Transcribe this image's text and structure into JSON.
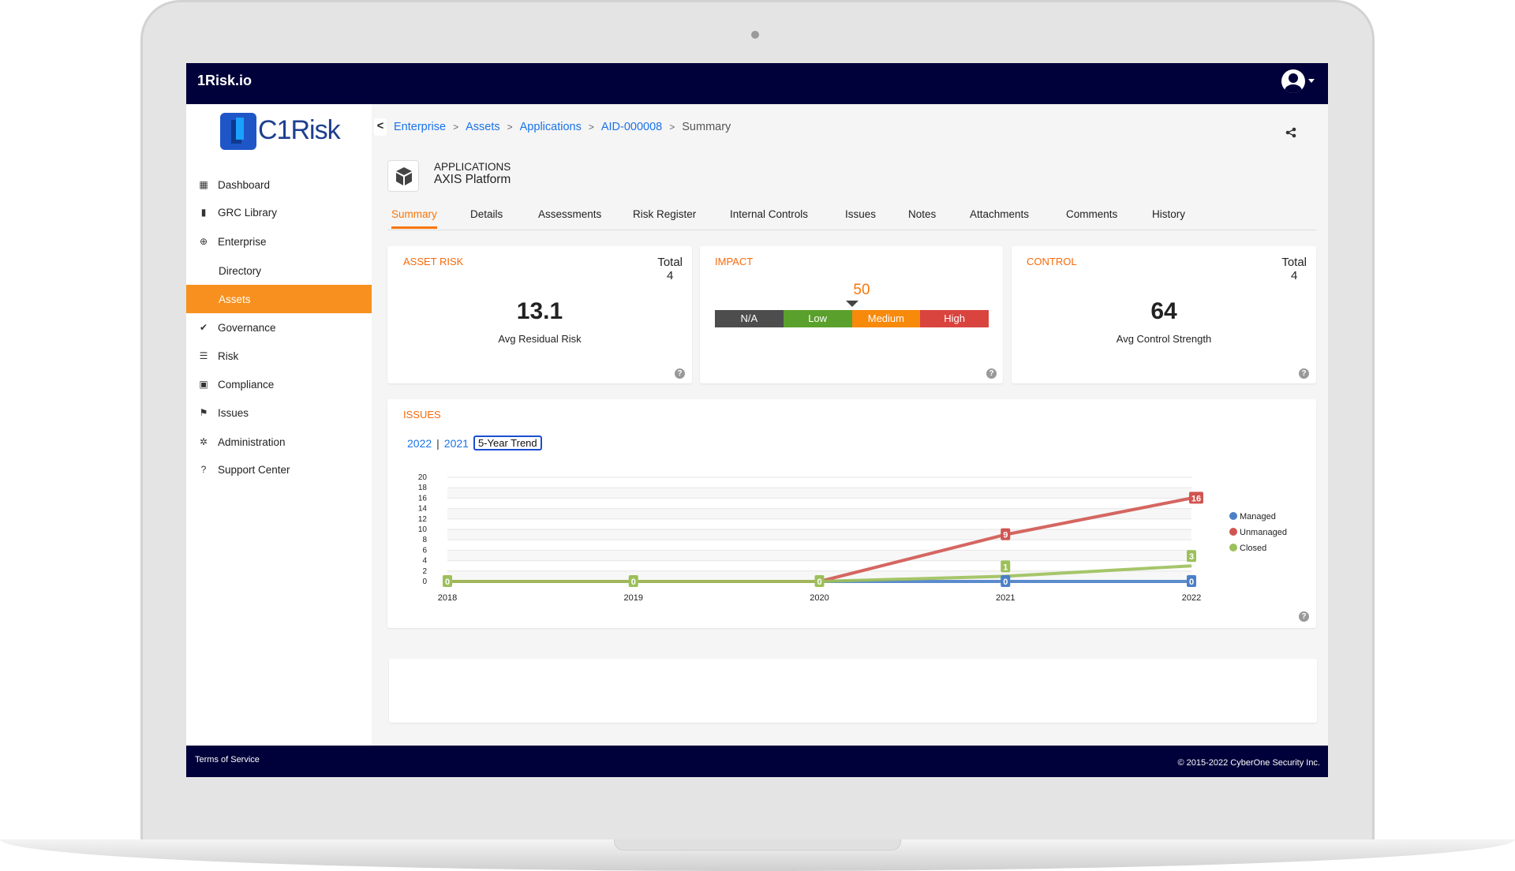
{
  "app": {
    "title": "1Risk.io",
    "logo_text": "C1Risk"
  },
  "sidebar": {
    "items": [
      {
        "label": "Dashboard",
        "icon": "grid-icon"
      },
      {
        "label": "GRC Library",
        "icon": "book-icon"
      },
      {
        "label": "Enterprise",
        "icon": "globe-icon"
      },
      {
        "label": "Directory",
        "icon": ""
      },
      {
        "label": "Assets",
        "icon": "",
        "active": true
      },
      {
        "label": "Governance",
        "icon": "check-icon"
      },
      {
        "label": "Risk",
        "icon": "list-icon"
      },
      {
        "label": "Compliance",
        "icon": "clipboard-icon"
      },
      {
        "label": "Issues",
        "icon": "flag-icon"
      },
      {
        "label": "Administration",
        "icon": "gear-icon"
      },
      {
        "label": "Support Center",
        "icon": "question-icon"
      }
    ]
  },
  "breadcrumb": {
    "items": [
      "Enterprise",
      "Assets",
      "Applications",
      "AID-000008"
    ],
    "current": "Summary",
    "sep": ">",
    "back": "<"
  },
  "header": {
    "category": "APPLICATIONS",
    "name": "AXIS Platform"
  },
  "tabs": [
    "Summary",
    "Details",
    "Assessments",
    "Risk Register",
    "Internal Controls",
    "Issues",
    "Notes",
    "Attachments",
    "Comments",
    "History"
  ],
  "cards": {
    "asset_risk": {
      "title": "ASSET RISK",
      "total_label": "Total",
      "total": "4",
      "value": "13.1",
      "label": "Avg Residual Risk"
    },
    "impact": {
      "title": "IMPACT",
      "value": "50",
      "value_fraction": 0.5,
      "segments": [
        {
          "label": "N/A",
          "color": "#4d4d4d"
        },
        {
          "label": "Low",
          "color": "#5aa02c"
        },
        {
          "label": "Medium",
          "color": "#f7890b"
        },
        {
          "label": "High",
          "color": "#d9443f"
        }
      ]
    },
    "control": {
      "title": "CONTROL",
      "total_label": "Total",
      "total": "4",
      "value": "64",
      "label": "Avg Control Strength"
    }
  },
  "issues": {
    "title": "ISSUES",
    "filters": [
      "2022",
      "2021",
      "5-Year Trend"
    ],
    "filter_sep": "|"
  },
  "chart_data": {
    "type": "line",
    "x": [
      "2018",
      "2019",
      "2020",
      "2021",
      "2022"
    ],
    "ylim": [
      0,
      20
    ],
    "yticks": [
      0,
      2,
      4,
      6,
      8,
      10,
      12,
      14,
      16,
      18,
      20
    ],
    "legend": "right",
    "series": [
      {
        "name": "Managed",
        "color": "#4a80c8",
        "values": [
          0,
          0,
          0,
          0,
          0
        ]
      },
      {
        "name": "Unmanaged",
        "color": "#d05550",
        "values": [
          0,
          0,
          0,
          9,
          16
        ]
      },
      {
        "name": "Closed",
        "color": "#9cc05a",
        "values": [
          0,
          0,
          0,
          1,
          3
        ]
      }
    ]
  },
  "footer": {
    "terms": "Terms of Service",
    "copyright": "© 2015-2022 CyberOne Security Inc."
  },
  "help": "?"
}
